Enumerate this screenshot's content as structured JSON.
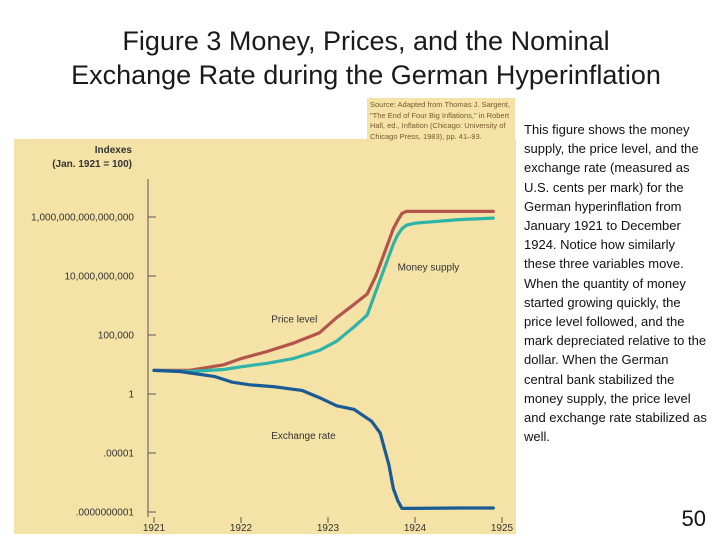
{
  "slide": {
    "title_line1": "Figure 3 Money, Prices, and the Nominal",
    "title_line2": "Exchange Rate during the German Hyperinflation",
    "source_note": "Source: Adapted from Thomas J. Sargent, \"The End of Four Big Inflations,\" in Robert Hall, ed., Inflation (Chicago: University of Chicago Press, 1983), pp. 41–93.",
    "description": "This figure shows the money supply, the price level, and the exchange rate (measured as U.S. cents per mark) for the German hyperinflation from January 1921 to December 1924. Notice how similarly these three variables move. When the quantity of money started growing quickly, the price level followed, and the mark depreciated relative to the dollar. When the German central bank stabilized the money supply, the price level and exchange rate stabilized as well.",
    "page_number": "50"
  },
  "colors": {
    "panel": "#f4e2a6",
    "price_level": "#b5544c",
    "money_supply": "#2eb3a8",
    "exchange_rate": "#1a5b96",
    "axis": "#555555"
  },
  "chart_data": {
    "type": "line",
    "title": "",
    "ylabel_line1": "Indexes",
    "ylabel_line2": "(Jan. 1921 = 100)",
    "y_scale": "log",
    "x_ticks": [
      "1921",
      "1922",
      "1923",
      "1924",
      "1925"
    ],
    "y_ticks": [
      {
        "value": 1e-10,
        "label": ".0000000001"
      },
      {
        "value": 1e-05,
        "label": ".00001"
      },
      {
        "value": 1,
        "label": "1"
      },
      {
        "value": 100000.0,
        "label": "100,000"
      },
      {
        "value": 10000000000.0,
        "label": "10,000,000,000"
      },
      {
        "value": 1000000000000000.0,
        "label": "1,000,000,000,000,000"
      }
    ],
    "xlim": [
      1921,
      1925
    ],
    "ylim": [
      1e-10,
      1000000000000000.0
    ],
    "grid": false,
    "series": [
      {
        "name": "Price level",
        "color_key": "price_level",
        "x": [
          1921.0,
          1921.4,
          1921.8,
          1922.0,
          1922.3,
          1922.6,
          1922.9,
          1923.1,
          1923.3,
          1923.45,
          1923.55,
          1923.65,
          1923.75,
          1923.8,
          1923.85,
          1923.9,
          1924.0,
          1924.5,
          1924.9
        ],
        "y": [
          100,
          100,
          300,
          1000,
          4000,
          20000,
          150000,
          3000000,
          40000000,
          300000000,
          10000000000.0,
          1000000000000.0,
          100000000000000.0,
          500000000000000.0,
          2000000000000000.0,
          3000000000000000.0,
          3000000000000000.0,
          3000000000000000.0,
          3000000000000000.0
        ]
      },
      {
        "name": "Money supply",
        "color_key": "money_supply",
        "x": [
          1921.0,
          1921.4,
          1921.8,
          1922.0,
          1922.3,
          1922.6,
          1922.9,
          1923.1,
          1923.3,
          1923.45,
          1923.55,
          1923.65,
          1923.75,
          1923.8,
          1923.85,
          1923.9,
          1924.0,
          1924.5,
          1924.9
        ],
        "y": [
          100,
          80,
          120,
          200,
          400,
          1000,
          5000,
          30000,
          500000,
          5000000,
          500000000.0,
          50000000000.0,
          5000000000000.0,
          30000000000000.0,
          100000000000000.0,
          200000000000000.0,
          300000000000000.0,
          600000000000000.0,
          800000000000000.0
        ]
      },
      {
        "name": "Exchange rate",
        "color_key": "exchange_rate",
        "x": [
          1921.0,
          1921.3,
          1921.7,
          1921.9,
          1922.1,
          1922.4,
          1922.7,
          1922.9,
          1923.1,
          1923.3,
          1923.5,
          1923.6,
          1923.7,
          1923.75,
          1923.8,
          1923.85,
          1924.0,
          1924.5,
          1924.9
        ],
        "y": [
          100,
          80,
          30,
          10,
          6,
          4,
          2,
          0.5,
          0.1,
          0.05,
          0.005,
          0.0005,
          1e-06,
          1e-08,
          1e-09,
          2e-10,
          2e-10,
          2.2e-10,
          2.2e-10
        ]
      }
    ],
    "annotations": [
      {
        "text": "Money supply",
        "series": "Money supply"
      },
      {
        "text": "Price level",
        "series": "Price level"
      },
      {
        "text": "Exchange rate",
        "series": "Exchange rate"
      }
    ]
  }
}
